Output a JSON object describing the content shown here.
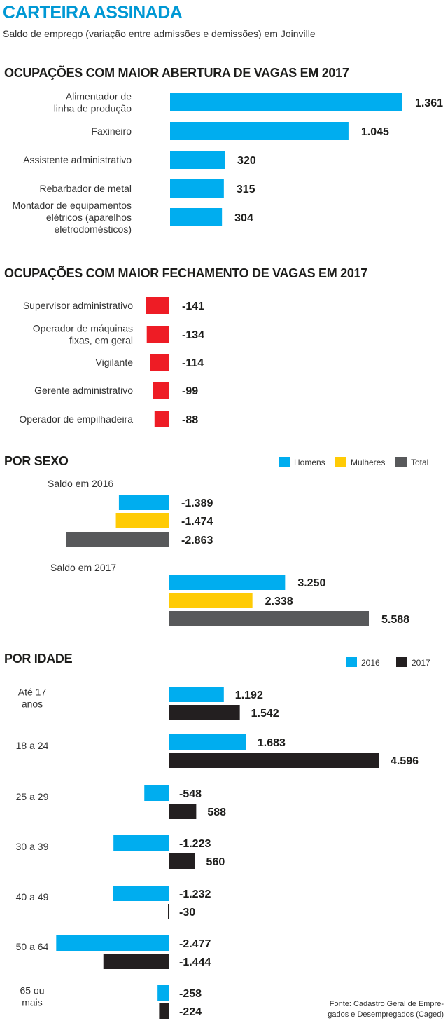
{
  "title": "CARTEIRA ASSINADA",
  "subtitle": "Saldo de emprego (variação entre admissões e demissões) em Joinville",
  "source": "Fonte: Cadastro Geral de Empregados e Desempregados (Caged)",
  "source_lines": [
    "Fonte: Cadastro Geral de Empre-",
    "gados e Desempregados (Caged)"
  ],
  "colors": {
    "blue": "#00adef",
    "red": "#ee1c25",
    "yellow": "#ffcb05",
    "gray": "#58595b",
    "black": "#231f20"
  },
  "chart_data": [
    {
      "type": "bar",
      "title": "OCUPAÇÕES COM MAIOR ABERTURA DE VAGAS EM 2017",
      "categories": [
        [
          "Alimentador de",
          "linha de produção"
        ],
        [
          "Faxineiro"
        ],
        [
          "Assistente administrativo"
        ],
        [
          "Rebarbador de metal"
        ],
        [
          "Montador de equipamentos",
          "elétricos (aparelhos",
          "eletrodomésticos)"
        ]
      ],
      "values": [
        1361,
        1045,
        320,
        315,
        304
      ],
      "value_labels": [
        "1.361",
        "1.045",
        "320",
        "315",
        "304"
      ],
      "color": "#00adef"
    },
    {
      "type": "bar",
      "title": "OCUPAÇÕES COM MAIOR FECHAMENTO DE VAGAS EM 2017",
      "categories": [
        [
          "Supervisor administrativo"
        ],
        [
          "Operador de máquinas",
          "fixas, em geral"
        ],
        [
          "Vigilante"
        ],
        [
          "Gerente administrativo"
        ],
        [
          "Operador de empilhadeira"
        ]
      ],
      "values": [
        -141,
        -134,
        -114,
        -99,
        -88
      ],
      "value_labels": [
        "-141",
        "-134",
        "-114",
        "-99",
        "-88"
      ],
      "color": "#ee1c25"
    },
    {
      "type": "bar",
      "title": "POR SEXO",
      "legend": [
        "Homens",
        "Mulheres",
        "Total"
      ],
      "legend_colors": [
        "#00adef",
        "#ffcb05",
        "#58595b"
      ],
      "legend_position": "top-right",
      "groups": [
        {
          "label": "Saldo em 2016",
          "values": [
            -1389,
            -1474,
            -2863
          ],
          "value_labels": [
            "-1.389",
            "-1.474",
            "-2.863"
          ]
        },
        {
          "label": "Saldo em 2017",
          "values": [
            3250,
            2338,
            5588
          ],
          "value_labels": [
            "3.250",
            "2.338",
            "5.588"
          ]
        }
      ]
    },
    {
      "type": "bar",
      "title": "POR IDADE",
      "legend": [
        "2016",
        "2017"
      ],
      "legend_colors": [
        "#00adef",
        "#231f20"
      ],
      "legend_position": "top-right",
      "groups": [
        {
          "label": [
            "Até 17",
            "anos"
          ],
          "values": [
            1192,
            1542
          ],
          "value_labels": [
            "1.192",
            "1.542"
          ]
        },
        {
          "label": [
            "18 a 24"
          ],
          "values": [
            1683,
            4596
          ],
          "value_labels": [
            "1.683",
            "4.596"
          ]
        },
        {
          "label": [
            "25 a 29"
          ],
          "values": [
            -548,
            588
          ],
          "value_labels": [
            "-548",
            "588"
          ]
        },
        {
          "label": [
            "30 a 39"
          ],
          "values": [
            -1223,
            560
          ],
          "value_labels": [
            "-1.223",
            "560"
          ]
        },
        {
          "label": [
            "40 a 49"
          ],
          "values": [
            -1232,
            -30
          ],
          "value_labels": [
            "-1.232",
            "-30"
          ]
        },
        {
          "label": [
            "50 a 64"
          ],
          "values": [
            -2477,
            -1444
          ],
          "value_labels": [
            "-2.477",
            "-1.444"
          ]
        },
        {
          "label": [
            "65 ou",
            "mais"
          ],
          "values": [
            -258,
            -224
          ],
          "value_labels": [
            "-258",
            "-224"
          ]
        }
      ]
    }
  ]
}
